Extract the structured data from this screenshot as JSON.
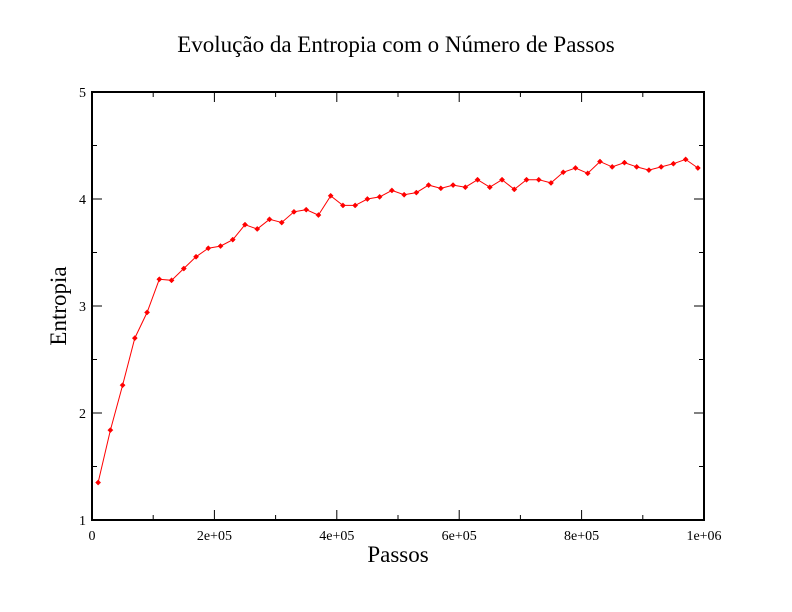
{
  "chart_data": {
    "type": "line",
    "title": "Evolução da Entropia com o Número de Passos",
    "xlabel": "Passos",
    "ylabel": "Entropia",
    "xlim": [
      0,
      1000000
    ],
    "ylim": [
      1,
      5
    ],
    "x_ticks": [
      {
        "value": 0,
        "label": "0"
      },
      {
        "value": 200000,
        "label": "2e+05"
      },
      {
        "value": 400000,
        "label": "4e+05"
      },
      {
        "value": 600000,
        "label": "6e+05"
      },
      {
        "value": 800000,
        "label": "8e+05"
      },
      {
        "value": 1000000,
        "label": "1e+06"
      }
    ],
    "y_ticks": [
      {
        "value": 1,
        "label": "1"
      },
      {
        "value": 2,
        "label": "2"
      },
      {
        "value": 3,
        "label": "3"
      },
      {
        "value": 4,
        "label": "4"
      },
      {
        "value": 5,
        "label": "5"
      }
    ],
    "grid": false,
    "series_color": "#ff0000",
    "series": [
      {
        "x": [
          10000,
          30000,
          50000,
          70000,
          90000,
          110000,
          130000,
          150000,
          170000,
          190000,
          210000,
          230000,
          250000,
          270000,
          290000,
          310000,
          330000,
          350000,
          370000,
          390000,
          410000,
          430000,
          450000,
          470000,
          490000,
          510000,
          530000,
          550000,
          570000,
          590000,
          610000,
          630000,
          650000,
          670000,
          690000,
          710000,
          730000,
          750000,
          770000,
          790000,
          810000,
          830000,
          850000,
          870000,
          890000,
          910000,
          930000,
          950000,
          970000,
          990000
        ],
        "values": [
          1.35,
          1.84,
          2.26,
          2.7,
          2.94,
          3.25,
          3.24,
          3.35,
          3.46,
          3.54,
          3.56,
          3.62,
          3.76,
          3.72,
          3.81,
          3.78,
          3.88,
          3.9,
          3.85,
          4.03,
          3.94,
          3.94,
          4.0,
          4.02,
          4.08,
          4.04,
          4.06,
          4.13,
          4.1,
          4.13,
          4.11,
          4.18,
          4.11,
          4.18,
          4.09,
          4.18,
          4.18,
          4.15,
          4.25,
          4.29,
          4.24,
          4.35,
          4.3,
          4.34,
          4.3,
          4.27,
          4.3,
          4.33,
          4.37,
          4.29
        ]
      }
    ]
  }
}
